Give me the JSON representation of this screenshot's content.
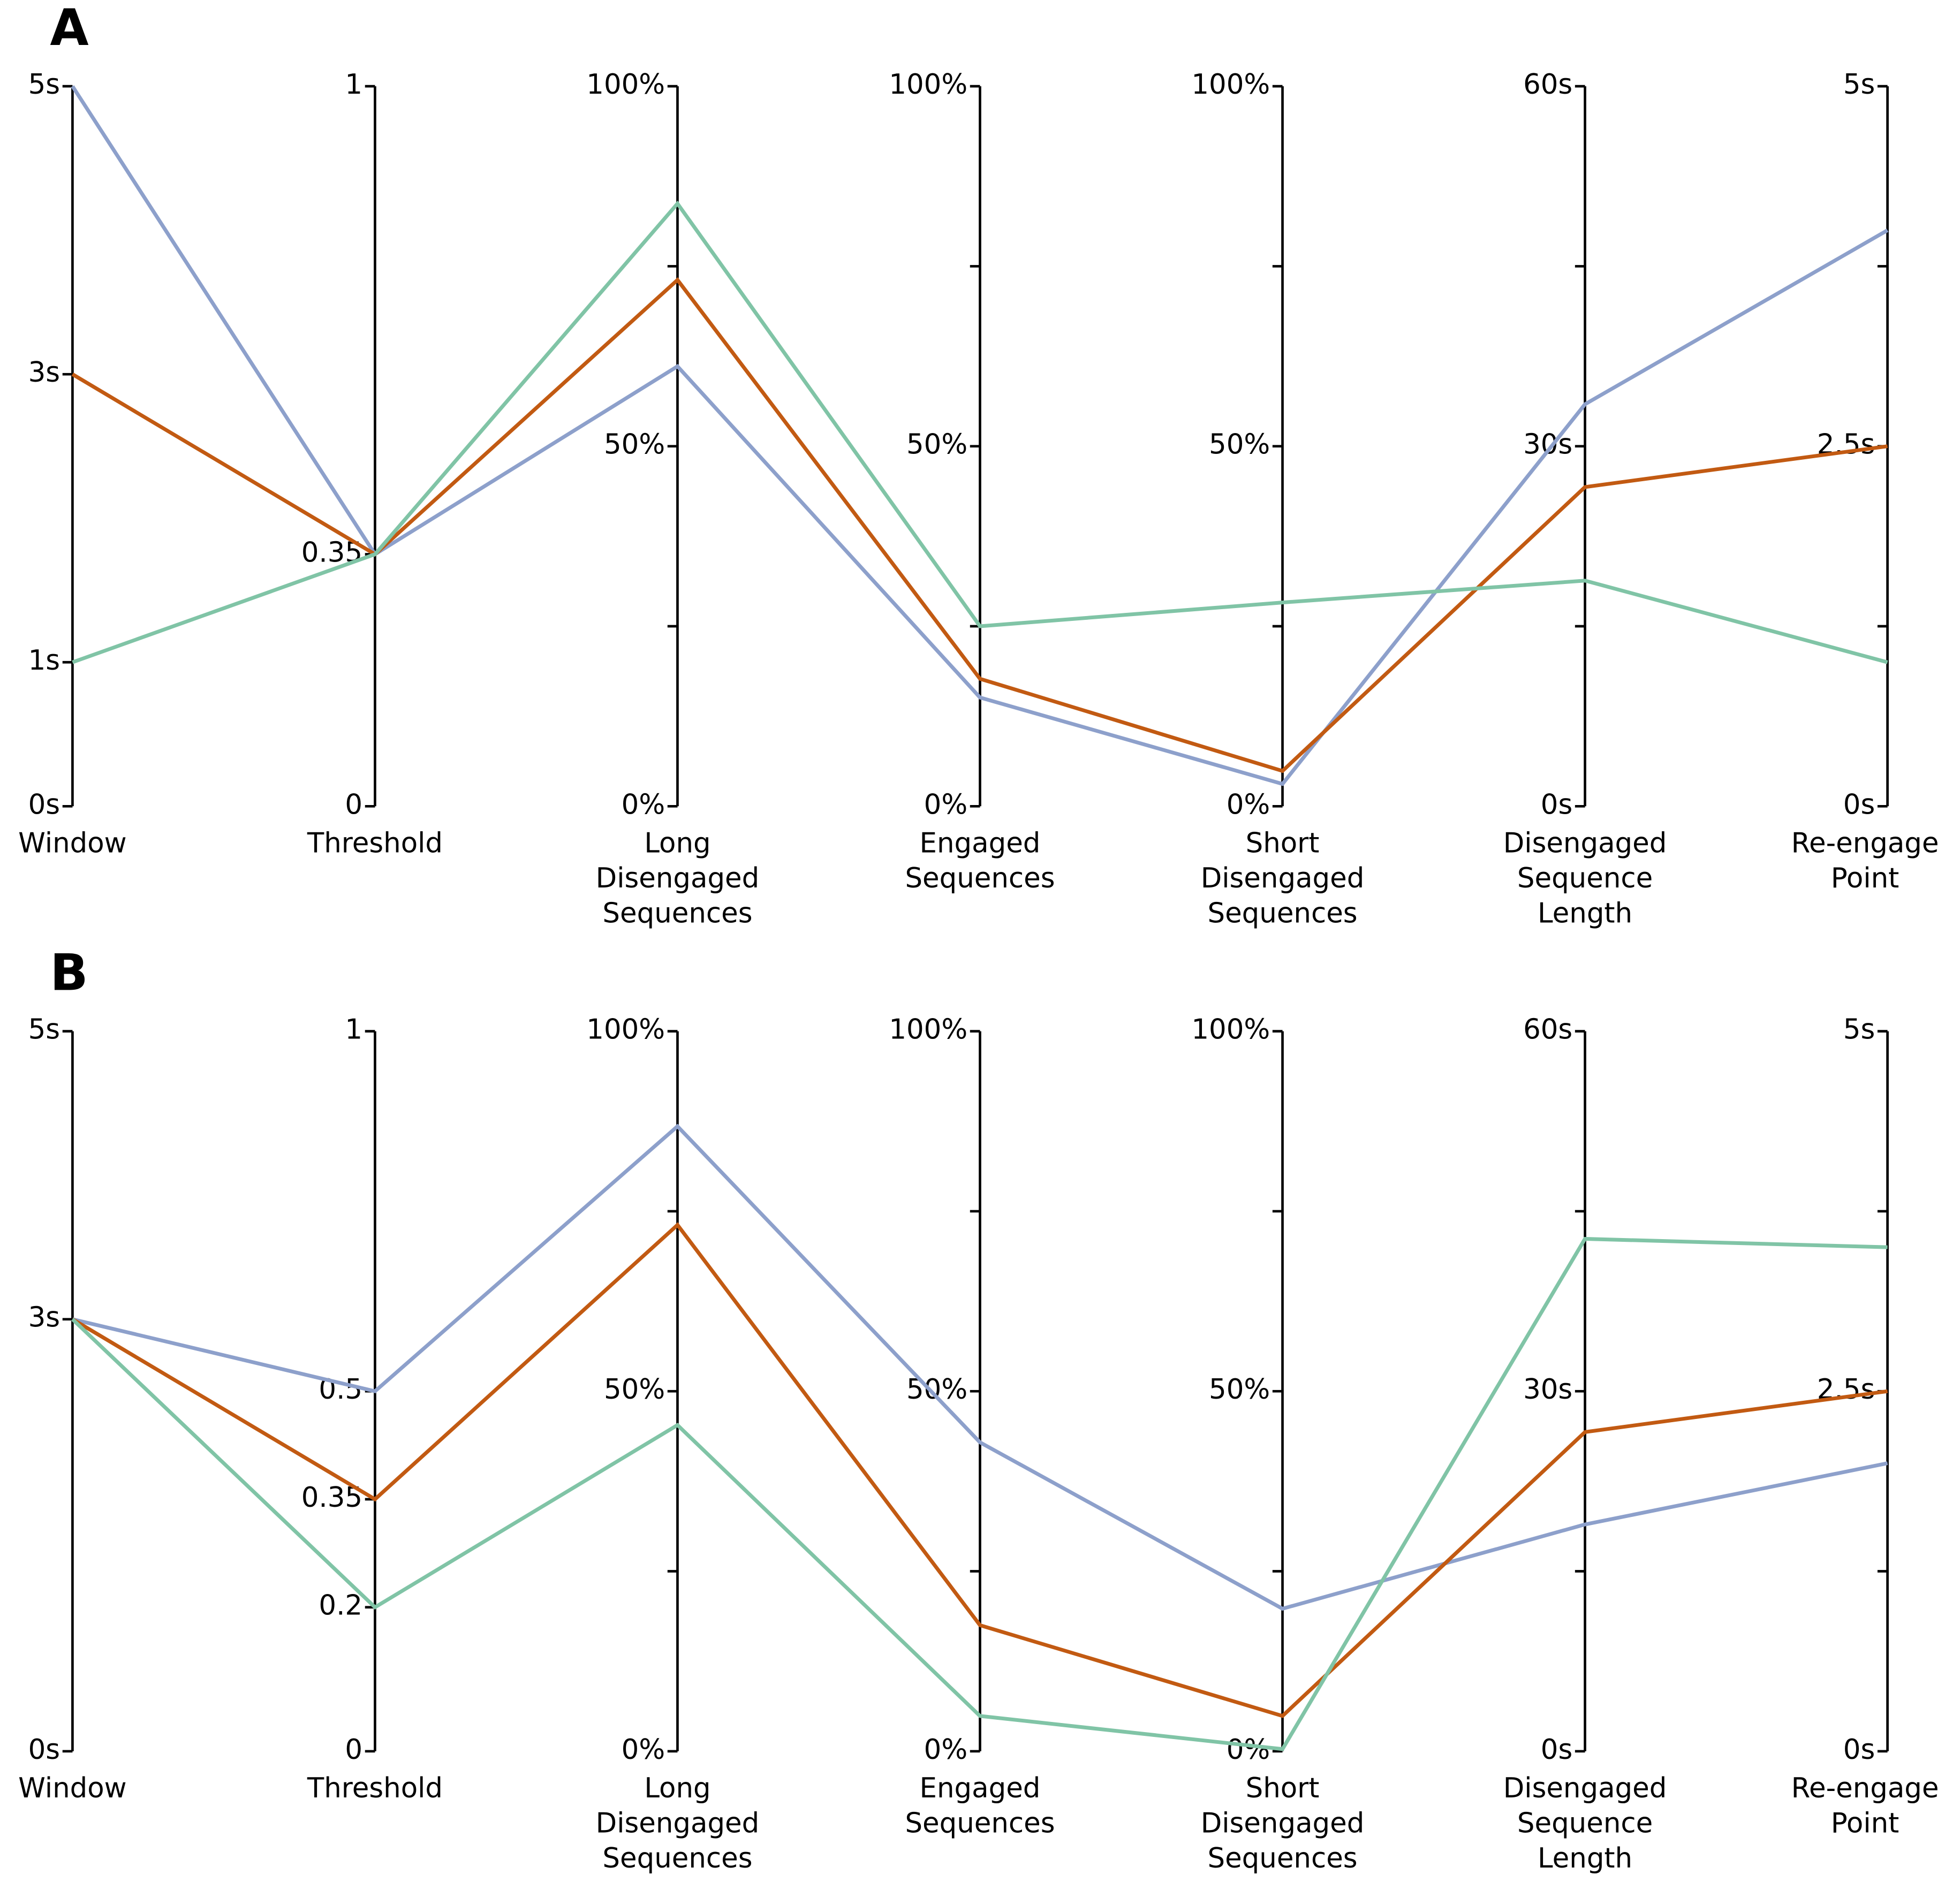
{
  "chart_data": [
    {
      "type": "parallel",
      "label": "A",
      "axes": [
        {
          "label": [
            "Window"
          ],
          "lim": [
            0,
            5
          ],
          "ticks": [
            {
              "value": 0,
              "label": "0s"
            },
            {
              "value": 1,
              "label": "1s"
            },
            {
              "value": 3,
              "label": "3s"
            },
            {
              "value": 5,
              "label": "5s"
            }
          ],
          "minor_ticks": []
        },
        {
          "label": [
            "Threshold"
          ],
          "lim": [
            0,
            1
          ],
          "ticks": [
            0,
            0.35,
            1
          ],
          "minor_ticks": []
        },
        {
          "label": [
            "Long",
            "Disengaged",
            "Sequences"
          ],
          "lim": [
            0,
            100
          ],
          "ticks": [
            {
              "value": 0,
              "label": "0%"
            },
            {
              "value": 50,
              "label": "50%"
            },
            {
              "value": 100,
              "label": "100%"
            }
          ],
          "minor_ticks": [
            25,
            75
          ]
        },
        {
          "label": [
            "Engaged",
            "Sequences"
          ],
          "lim": [
            0,
            100
          ],
          "ticks": [
            {
              "value": 0,
              "label": "0%"
            },
            {
              "value": 50,
              "label": "50%"
            },
            {
              "value": 100,
              "label": "100%"
            }
          ],
          "minor_ticks": [
            25,
            75
          ]
        },
        {
          "label": [
            "Short",
            "Disengaged",
            "Sequences"
          ],
          "lim": [
            0,
            100
          ],
          "ticks": [
            {
              "value": 0,
              "label": "0%"
            },
            {
              "value": 50,
              "label": "50%"
            },
            {
              "value": 100,
              "label": "100%"
            }
          ],
          "minor_ticks": [
            25,
            75
          ]
        },
        {
          "label": [
            "Disengaged",
            "Sequence",
            "Length"
          ],
          "lim": [
            0,
            60
          ],
          "ticks": [
            {
              "value": 0,
              "label": "0s"
            },
            {
              "value": 30,
              "label": "30s"
            },
            {
              "value": 60,
              "label": "60s"
            }
          ],
          "minor_ticks": [
            15,
            45
          ]
        },
        {
          "label": [
            "Re-engage",
            "Point"
          ],
          "lim": [
            0,
            5
          ],
          "ticks": [
            {
              "value": 0,
              "label": "0s"
            },
            {
              "value": 2.5,
              "label": "2.5s"
            },
            {
              "value": 5,
              "label": "5s"
            }
          ],
          "minor_ticks": [
            1.25,
            3.75
          ]
        }
      ],
      "series": [
        {
          "color": "#8da0cb",
          "values": [
            5,
            0.35,
            61.1,
            15.1,
            3.1,
            33.5,
            4.0
          ]
        },
        {
          "color": "#c25a12",
          "values": [
            3,
            0.35,
            73.1,
            17.7,
            4.9,
            26.6,
            2.5
          ]
        },
        {
          "color": "#80c4a6",
          "values": [
            1,
            0.35,
            83.7,
            25,
            28.3,
            18.8,
            1.0
          ]
        }
      ]
    },
    {
      "type": "parallel",
      "label": "B",
      "axes": [
        {
          "label": [
            "Window"
          ],
          "lim": [
            0,
            5
          ],
          "ticks": [
            {
              "value": 0,
              "label": "0s"
            },
            {
              "value": 3,
              "label": "3s"
            },
            {
              "value": 5,
              "label": "5s"
            }
          ],
          "minor_ticks": []
        },
        {
          "label": [
            "Threshold"
          ],
          "lim": [
            0,
            1
          ],
          "ticks": [
            0,
            0.2,
            0.35,
            0.5,
            1
          ],
          "minor_ticks": []
        },
        {
          "label": [
            "Long",
            "Disengaged",
            "Sequences"
          ],
          "lim": [
            0,
            100
          ],
          "ticks": [
            {
              "value": 0,
              "label": "0%"
            },
            {
              "value": 50,
              "label": "50%"
            },
            {
              "value": 100,
              "label": "100%"
            }
          ],
          "minor_ticks": [
            25,
            75
          ]
        },
        {
          "label": [
            "Engaged",
            "Sequences"
          ],
          "lim": [
            0,
            100
          ],
          "ticks": [
            {
              "value": 0,
              "label": "0%"
            },
            {
              "value": 50,
              "label": "50%"
            },
            {
              "value": 100,
              "label": "100%"
            }
          ],
          "minor_ticks": [
            25,
            75
          ]
        },
        {
          "label": [
            "Short",
            "Disengaged",
            "Sequences"
          ],
          "lim": [
            0,
            100
          ],
          "ticks": [
            {
              "value": 0,
              "label": "0%"
            },
            {
              "value": 50,
              "label": "50%"
            },
            {
              "value": 100,
              "label": "100%"
            }
          ],
          "minor_ticks": [
            25,
            75
          ]
        },
        {
          "label": [
            "Disengaged",
            "Sequence",
            "Length"
          ],
          "lim": [
            0,
            60
          ],
          "ticks": [
            {
              "value": 0,
              "label": "0s"
            },
            {
              "value": 30,
              "label": "30s"
            },
            {
              "value": 60,
              "label": "60s"
            }
          ],
          "minor_ticks": [
            15,
            45
          ]
        },
        {
          "label": [
            "Re-engage",
            "Point"
          ],
          "lim": [
            0,
            5
          ],
          "ticks": [
            {
              "value": 0,
              "label": "0s"
            },
            {
              "value": 2.5,
              "label": "2.5s"
            },
            {
              "value": 5,
              "label": "5s"
            }
          ],
          "minor_ticks": [
            1.25,
            3.75
          ]
        }
      ],
      "series": [
        {
          "color": "#8da0cb",
          "values": [
            3,
            0.5,
            86.8,
            42.9,
            19.8,
            18.9,
            2.0
          ]
        },
        {
          "color": "#c25a12",
          "values": [
            3,
            0.35,
            73.1,
            17.5,
            4.9,
            26.6,
            2.5
          ]
        },
        {
          "color": "#80c4a6",
          "values": [
            3,
            0.2,
            45.3,
            4.9,
            0.3,
            42.7,
            3.5
          ]
        }
      ]
    }
  ]
}
